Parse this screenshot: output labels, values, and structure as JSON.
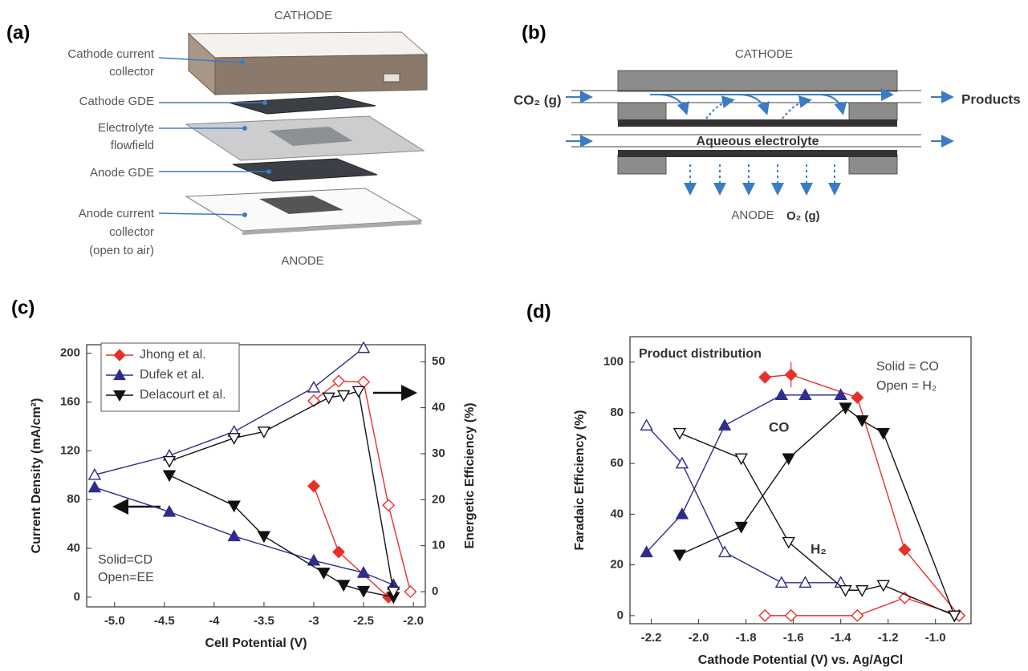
{
  "panels": {
    "a": {
      "panel_label": "(a)",
      "top_label": "CATHODE",
      "bottom_label": "ANODE",
      "parts": [
        {
          "lines": [
            "Cathode current",
            "collector"
          ]
        },
        {
          "lines": [
            "Cathode GDE"
          ]
        },
        {
          "lines": [
            "Electrolyte",
            "flowfield"
          ]
        },
        {
          "lines": [
            "Anode GDE"
          ]
        },
        {
          "lines": [
            "Anode current",
            "collector",
            "(open to air)"
          ]
        }
      ]
    },
    "b": {
      "panel_label": "(b)",
      "top_label": "CATHODE",
      "inlet": "CO₂ (g)",
      "outlet": "Products",
      "electrolyte": "Aqueous electrolyte",
      "bottom_label": "ANODE",
      "gas_out": "O₂ (g)"
    }
  },
  "chart_data": [
    {
      "type": "line",
      "panel_label": "(c)",
      "x_label": "Cell Potential (V)",
      "y_label": "Current Density (mA/cm²)",
      "y2_label": "Energetic Efficiency (%)",
      "xlim": [
        -5.28,
        -1.88
      ],
      "xticks": [
        {
          "value": -5,
          "label": "-5.0"
        },
        -4.5,
        -4,
        -3.5,
        -3,
        -2.5,
        {
          "value": -2,
          "label": "-2.0"
        }
      ],
      "ylim": [
        -8,
        207
      ],
      "yticks": [
        0,
        40,
        80,
        120,
        160,
        200
      ],
      "y2lim": [
        -3.3,
        53.7
      ],
      "y2ticks": [
        0,
        10,
        20,
        30,
        40,
        50
      ],
      "legend": "upper left",
      "annotations": [
        "Solid=CD",
        "Open=EE"
      ],
      "series": [
        {
          "name": "Jhong et al.",
          "color": "#e8302a",
          "marker": "diamond",
          "filled": true,
          "x": [
            -3.0,
            -2.75,
            -2.25
          ],
          "values": [
            91,
            37,
            0
          ]
        },
        {
          "name": "Dufek et al.",
          "color": "#2e2c8c",
          "marker": "triangle-up",
          "filled": true,
          "x": [
            -5.2,
            -4.45,
            -3.8,
            -3.0,
            -2.5,
            -2.2
          ],
          "values": [
            90,
            70,
            50,
            30,
            20,
            10
          ]
        },
        {
          "name": "Delacourt et al.",
          "color": "#111111",
          "marker": "triangle-down",
          "filled": true,
          "x": [
            -4.45,
            -3.8,
            -3.5,
            -2.9,
            -2.7,
            -2.5,
            -2.2
          ],
          "values": [
            100,
            75,
            50,
            20,
            10,
            5,
            0
          ]
        },
        {
          "color": "#e8302a",
          "marker": "diamond",
          "filled": false,
          "axis": "y2",
          "x": [
            -3.0,
            -2.75,
            -2.5,
            -2.25,
            -2.03
          ],
          "values": [
            41.5,
            45.8,
            45.6,
            18.8,
            0
          ]
        },
        {
          "color": "#2e2c8c",
          "marker": "triangle-up",
          "filled": false,
          "axis": "y2",
          "x": [
            -5.2,
            -4.45,
            -3.8,
            -3.0,
            -2.5
          ],
          "values": [
            25.4,
            29.6,
            34.8,
            44.4,
            53
          ]
        },
        {
          "color": "#111111",
          "marker": "triangle-down",
          "filled": false,
          "axis": "y2",
          "x": [
            -4.45,
            -3.8,
            -3.5,
            -2.85,
            -2.7,
            -2.55,
            -2.2
          ],
          "values": [
            28.4,
            33.4,
            34.8,
            42.2,
            42.7,
            43.6,
            0
          ]
        }
      ]
    },
    {
      "type": "line",
      "panel_label": "(d)",
      "x_label": "Cathode Potential (V) vs. Ag/AgCl",
      "y_label": "Faradaic Efficiency (%)",
      "xlim": [
        -2.29,
        -0.85
      ],
      "xticks": [
        -2.2,
        {
          "value": -2,
          "label": "-2.0"
        },
        -1.8,
        -1.6,
        -1.4,
        -1.2,
        {
          "value": -1,
          "label": "-1.0"
        }
      ],
      "ylim": [
        -3.2,
        110
      ],
      "yticks": [
        0,
        20,
        40,
        60,
        80,
        100
      ],
      "annotations": [
        "Product distribution",
        "Solid = CO",
        "Open = H₂",
        "CO",
        "H₂"
      ],
      "series": [
        {
          "color": "#e8302a",
          "marker": "diamond",
          "filled": true,
          "x": [
            -1.72,
            -1.61,
            -1.33,
            -1.13,
            -0.9
          ],
          "values": [
            94,
            95,
            86,
            26,
            0
          ],
          "errors": [
            null,
            5,
            null,
            null,
            null
          ]
        },
        {
          "color": "#e8302a",
          "marker": "diamond",
          "filled": false,
          "x": [
            -1.72,
            -1.61,
            -1.33,
            -1.13,
            -0.9
          ],
          "values": [
            0,
            0,
            0,
            7,
            0
          ]
        },
        {
          "color": "#2e2c8c",
          "marker": "triangle-up",
          "filled": true,
          "x": [
            -2.22,
            -2.07,
            -1.89,
            -1.65,
            -1.55,
            -1.4
          ],
          "values": [
            25,
            40,
            75,
            87,
            87,
            87
          ]
        },
        {
          "color": "#2e2c8c",
          "marker": "triangle-up",
          "filled": false,
          "x": [
            -2.22,
            -2.07,
            -1.89,
            -1.65,
            -1.55,
            -1.4
          ],
          "values": [
            75,
            60,
            25,
            13,
            13,
            13
          ]
        },
        {
          "color": "#111111",
          "marker": "triangle-down",
          "filled": true,
          "x": [
            -2.08,
            -1.82,
            -1.62,
            -1.38,
            -1.31,
            -1.22,
            -0.92
          ],
          "values": [
            24,
            35,
            62,
            82,
            77,
            72,
            0
          ]
        },
        {
          "color": "#111111",
          "marker": "triangle-down",
          "filled": false,
          "x": [
            -2.08,
            -1.82,
            -1.62,
            -1.38,
            -1.31,
            -1.22,
            -0.92
          ],
          "values": [
            72,
            62,
            29,
            10,
            10,
            12,
            0
          ]
        }
      ]
    }
  ]
}
